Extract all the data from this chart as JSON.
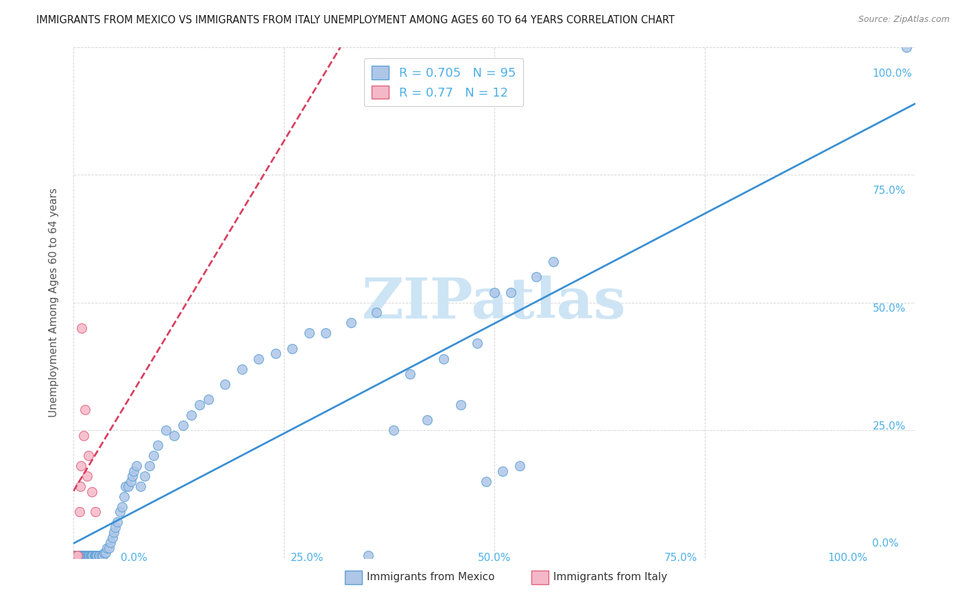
{
  "title": "IMMIGRANTS FROM MEXICO VS IMMIGRANTS FROM ITALY UNEMPLOYMENT AMONG AGES 60 TO 64 YEARS CORRELATION CHART",
  "source": "Source: ZipAtlas.com",
  "ylabel": "Unemployment Among Ages 60 to 64 years",
  "xlim": [
    0,
    1.0
  ],
  "ylim": [
    0,
    1.0
  ],
  "mexico_color": "#aec6e8",
  "mexico_edge": "#5a9fd4",
  "italy_color": "#f5b8c8",
  "italy_edge": "#e0607a",
  "mexico_R": 0.705,
  "mexico_N": 95,
  "italy_R": 0.77,
  "italy_N": 12,
  "regression_blue": "#3a8fd4",
  "regression_pink": "#d94060",
  "watermark": "ZIPatlas",
  "watermark_color": "#cde4f5",
  "legend_label_mexico": "Immigrants from Mexico",
  "legend_label_italy": "Immigrants from Italy",
  "tick_color": "#4db0e8",
  "grid_color": "#cccccc",
  "mexico_x": [
    0.001,
    0.002,
    0.002,
    0.003,
    0.003,
    0.004,
    0.004,
    0.005,
    0.005,
    0.005,
    0.006,
    0.006,
    0.007,
    0.007,
    0.008,
    0.008,
    0.009,
    0.009,
    0.01,
    0.01,
    0.011,
    0.012,
    0.013,
    0.013,
    0.014,
    0.015,
    0.016,
    0.017,
    0.018,
    0.019,
    0.02,
    0.021,
    0.022,
    0.023,
    0.025,
    0.026,
    0.027,
    0.028,
    0.03,
    0.031,
    0.033,
    0.035,
    0.037,
    0.038,
    0.04,
    0.042,
    0.044,
    0.046,
    0.048,
    0.05,
    0.052,
    0.055,
    0.058,
    0.06,
    0.062,
    0.065,
    0.068,
    0.07,
    0.072,
    0.075,
    0.08,
    0.085,
    0.09,
    0.095,
    0.1,
    0.11,
    0.12,
    0.13,
    0.14,
    0.15,
    0.16,
    0.18,
    0.2,
    0.22,
    0.24,
    0.26,
    0.28,
    0.3,
    0.33,
    0.36,
    0.4,
    0.44,
    0.48,
    0.5,
    0.52,
    0.55,
    0.57,
    0.38,
    0.42,
    0.46,
    0.49,
    0.51,
    0.53,
    0.99,
    0.35
  ],
  "mexico_y": [
    0.005,
    0.005,
    0.005,
    0.005,
    0.005,
    0.005,
    0.005,
    0.005,
    0.005,
    0.005,
    0.005,
    0.005,
    0.005,
    0.005,
    0.005,
    0.005,
    0.005,
    0.005,
    0.005,
    0.005,
    0.005,
    0.005,
    0.005,
    0.005,
    0.005,
    0.005,
    0.005,
    0.005,
    0.005,
    0.005,
    0.005,
    0.005,
    0.005,
    0.005,
    0.005,
    0.005,
    0.005,
    0.005,
    0.005,
    0.005,
    0.005,
    0.005,
    0.01,
    0.01,
    0.02,
    0.02,
    0.03,
    0.04,
    0.05,
    0.06,
    0.07,
    0.09,
    0.1,
    0.12,
    0.14,
    0.14,
    0.15,
    0.16,
    0.17,
    0.18,
    0.14,
    0.16,
    0.18,
    0.2,
    0.22,
    0.25,
    0.24,
    0.26,
    0.28,
    0.3,
    0.31,
    0.34,
    0.37,
    0.39,
    0.4,
    0.41,
    0.44,
    0.44,
    0.46,
    0.48,
    0.36,
    0.39,
    0.42,
    0.52,
    0.52,
    0.55,
    0.58,
    0.25,
    0.27,
    0.3,
    0.15,
    0.17,
    0.18,
    1.0,
    0.005
  ],
  "italy_x": [
    0.003,
    0.005,
    0.007,
    0.008,
    0.009,
    0.01,
    0.012,
    0.014,
    0.016,
    0.018,
    0.022,
    0.026
  ],
  "italy_y": [
    0.005,
    0.005,
    0.09,
    0.14,
    0.18,
    0.45,
    0.24,
    0.29,
    0.16,
    0.2,
    0.13,
    0.09
  ]
}
